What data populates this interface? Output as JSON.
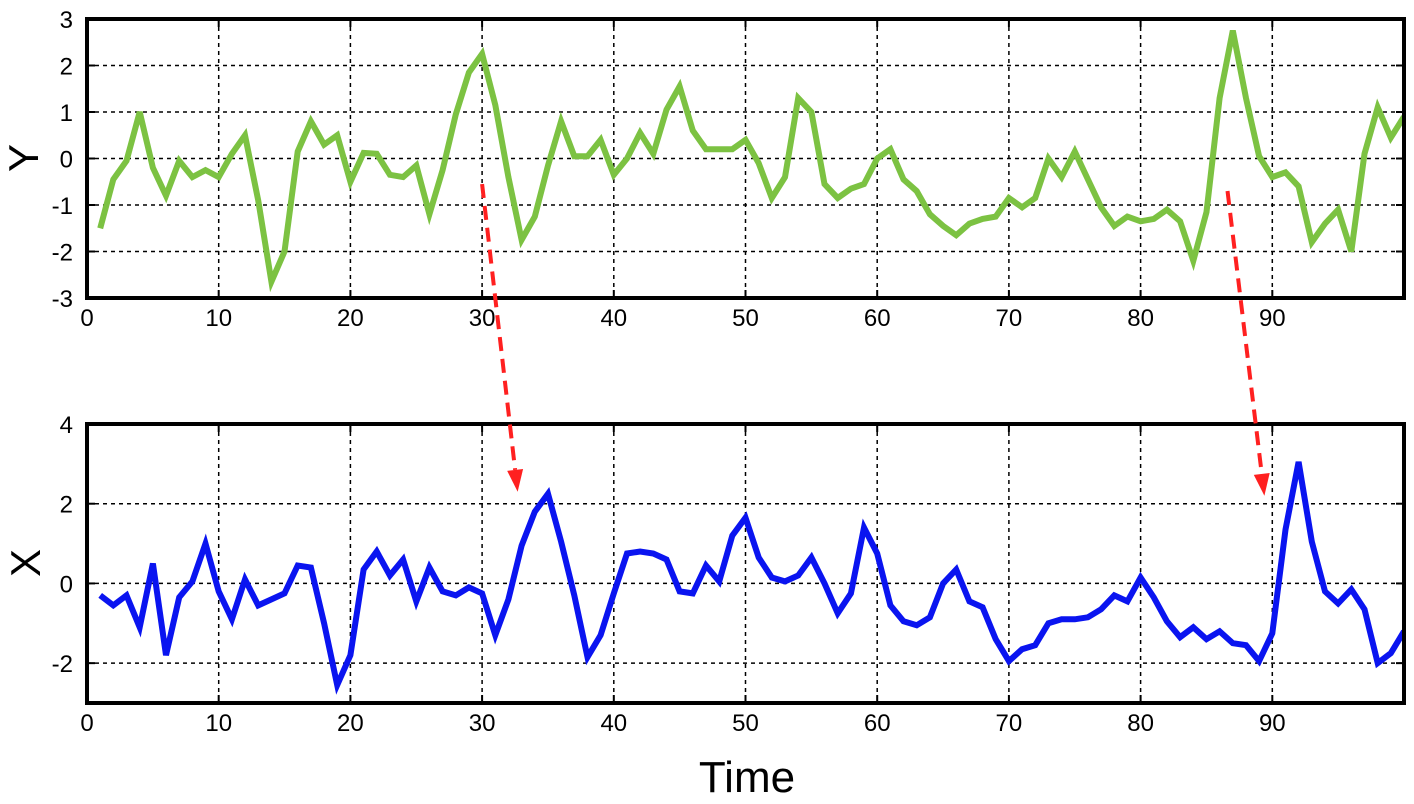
{
  "chart_data": [
    {
      "type": "line",
      "xlabel": "",
      "ylabel": "Y",
      "xlim": [
        0,
        100
      ],
      "ylim": [
        -3,
        3
      ],
      "xticks": [
        "0",
        "10",
        "20",
        "30",
        "40",
        "50",
        "60",
        "70",
        "80",
        "90"
      ],
      "yticks": [
        "-3",
        "-2",
        "-1",
        "0",
        "1",
        "2",
        "3"
      ],
      "grid": true,
      "color": "#7cc242",
      "x": [
        1,
        2,
        3,
        4,
        5,
        6,
        7,
        8,
        9,
        10,
        11,
        12,
        13,
        14,
        15,
        16,
        17,
        18,
        19,
        20,
        21,
        22,
        23,
        24,
        25,
        26,
        27,
        28,
        29,
        30,
        31,
        32,
        33,
        34,
        35,
        36,
        37,
        38,
        39,
        40,
        41,
        42,
        43,
        44,
        45,
        46,
        47,
        48,
        49,
        50,
        51,
        52,
        53,
        54,
        55,
        56,
        57,
        58,
        59,
        60,
        61,
        62,
        63,
        64,
        65,
        66,
        67,
        68,
        69,
        70,
        71,
        72,
        73,
        74,
        75,
        76,
        77,
        78,
        79,
        80,
        81,
        82,
        83,
        84,
        85,
        86,
        87,
        88,
        89,
        90,
        91,
        92,
        93,
        94,
        95,
        96,
        97,
        98,
        99,
        100
      ],
      "values": [
        -1.5,
        -0.45,
        -0.05,
        1.0,
        -0.2,
        -0.8,
        -0.05,
        -0.4,
        -0.25,
        -0.4,
        0.1,
        0.5,
        -0.9,
        -2.65,
        -2.0,
        0.15,
        0.8,
        0.3,
        0.5,
        -0.5,
        0.12,
        0.1,
        -0.35,
        -0.4,
        -0.15,
        -1.2,
        -0.25,
        0.95,
        1.85,
        2.25,
        1.15,
        -0.4,
        -1.75,
        -1.25,
        -0.15,
        0.8,
        0.05,
        0.05,
        0.4,
        -0.35,
        0.0,
        0.55,
        0.1,
        1.05,
        1.55,
        0.6,
        0.2,
        0.2,
        0.2,
        0.4,
        -0.1,
        -0.85,
        -0.4,
        1.3,
        1.0,
        -0.55,
        -0.85,
        -0.65,
        -0.55,
        0.0,
        0.2,
        -0.45,
        -0.7,
        -1.2,
        -1.45,
        -1.65,
        -1.4,
        -1.3,
        -1.25,
        -0.85,
        -1.05,
        -0.85,
        0.0,
        -0.4,
        0.15,
        -0.45,
        -1.05,
        -1.45,
        -1.25,
        -1.35,
        -1.3,
        -1.1,
        -1.35,
        -2.2,
        -1.15,
        1.3,
        2.75,
        1.3,
        0.05,
        -0.4,
        -0.3,
        -0.6,
        -1.8,
        -1.4,
        -1.1,
        -2.0,
        0.1,
        1.1,
        0.45,
        0.9
      ]
    },
    {
      "type": "line",
      "xlabel": "Time",
      "ylabel": "X",
      "xlim": [
        0,
        100
      ],
      "ylim": [
        -3,
        4
      ],
      "xticks": [
        "0",
        "10",
        "20",
        "30",
        "40",
        "50",
        "60",
        "70",
        "80",
        "90"
      ],
      "yticks": [
        "-2",
        "0",
        "2",
        "4"
      ],
      "grid": true,
      "color": "#0a14f0",
      "x": [
        1,
        2,
        3,
        4,
        5,
        6,
        7,
        8,
        9,
        10,
        11,
        12,
        13,
        14,
        15,
        16,
        17,
        18,
        19,
        20,
        21,
        22,
        23,
        24,
        25,
        26,
        27,
        28,
        29,
        30,
        31,
        32,
        33,
        34,
        35,
        36,
        37,
        38,
        39,
        40,
        41,
        42,
        43,
        44,
        45,
        46,
        47,
        48,
        49,
        50,
        51,
        52,
        53,
        54,
        55,
        56,
        57,
        58,
        59,
        60,
        61,
        62,
        63,
        64,
        65,
        66,
        67,
        68,
        69,
        70,
        71,
        72,
        73,
        74,
        75,
        76,
        77,
        78,
        79,
        80,
        81,
        82,
        83,
        84,
        85,
        86,
        87,
        88,
        89,
        90,
        91,
        92,
        93,
        94,
        95,
        96,
        97,
        98,
        99,
        100
      ],
      "values": [
        -0.3,
        -0.55,
        -0.3,
        -1.1,
        0.5,
        -1.8,
        -0.35,
        0.05,
        1.0,
        -0.2,
        -0.9,
        0.1,
        -0.55,
        -0.4,
        -0.25,
        0.45,
        0.4,
        -1.0,
        -2.55,
        -1.8,
        0.35,
        0.8,
        0.2,
        0.6,
        -0.45,
        0.4,
        -0.2,
        -0.3,
        -0.1,
        -0.25,
        -1.3,
        -0.4,
        0.95,
        1.8,
        2.25,
        1.05,
        -0.3,
        -1.85,
        -1.3,
        -0.25,
        0.75,
        0.8,
        0.75,
        0.6,
        -0.2,
        -0.25,
        0.45,
        0.05,
        1.2,
        1.65,
        0.65,
        0.15,
        0.05,
        0.2,
        0.65,
        0.0,
        -0.75,
        -0.25,
        1.4,
        0.75,
        -0.55,
        -0.95,
        -1.05,
        -0.85,
        0.0,
        0.35,
        -0.45,
        -0.6,
        -1.4,
        -1.95,
        -1.65,
        -1.55,
        -1.0,
        -0.9,
        -0.9,
        -0.85,
        -0.65,
        -0.3,
        -0.45,
        0.15,
        -0.35,
        -0.95,
        -1.35,
        -1.1,
        -1.4,
        -1.2,
        -1.5,
        -1.55,
        -1.95,
        -1.25,
        1.35,
        3.05,
        1.05,
        -0.2,
        -0.5,
        -0.15,
        -0.65,
        -2.0,
        -1.75,
        -1.2
      ]
    }
  ],
  "annotations": {
    "color": "#ff2020",
    "arrows": [
      {
        "from": {
          "panel": 0,
          "x": 30.0,
          "y": -0.55
        },
        "to": {
          "panel": 1,
          "x": 32.7,
          "y": 2.3
        }
      },
      {
        "from": {
          "panel": 0,
          "x": 86.6,
          "y": -0.7
        },
        "to": {
          "panel": 1,
          "x": 89.4,
          "y": 2.2
        }
      }
    ]
  }
}
